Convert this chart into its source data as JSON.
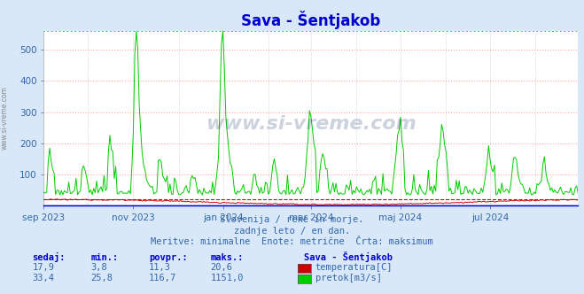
{
  "title": "Sava - Šentjakob",
  "bg_color": "#d8e8f8",
  "plot_bg_color": "#ffffff",
  "grid_color_h": "#ffaaaa",
  "grid_color_v": "#cccccc",
  "max_line_color": "#00cc00",
  "max_line_value": 560,
  "ylim": [
    0,
    560
  ],
  "yticks": [
    100,
    200,
    300,
    400,
    500
  ],
  "title_color": "#0000cc",
  "text_color": "#3366aa",
  "header_color": "#0000cc",
  "watermark": "www.si-vreme.com",
  "subtitle1": "Slovenija / reke in morje.",
  "subtitle2": "zadnje leto / en dan.",
  "subtitle3": "Meritve: minimalne  Enote: metrične  Črta: maksimum",
  "legend_title": "Sava - Šentjakob",
  "legend_items": [
    {
      "label": "temperatura[C]",
      "color": "#cc0000"
    },
    {
      "label": "pretok[m3/s]",
      "color": "#00cc00"
    }
  ],
  "table_headers": [
    "sedaj:",
    "min.:",
    "povpr.:",
    "maks.:"
  ],
  "table_row1": [
    "17,9",
    "3,8",
    "11,3",
    "20,6"
  ],
  "table_row2": [
    "33,4",
    "25,8",
    "116,7",
    "1151,0"
  ],
  "temp_line_color": "#cc0000",
  "flow_line_color": "#00cc00",
  "xticklabels": [
    "sep 2023",
    "nov 2023",
    "jan 2024",
    "mar 2024",
    "maj 2024",
    "jul 2024"
  ],
  "xtick_positions": [
    0,
    61,
    122,
    182,
    243,
    304
  ],
  "n_points": 365,
  "blue_border_color": "#0000cc",
  "red_border_color": "#cc0000"
}
